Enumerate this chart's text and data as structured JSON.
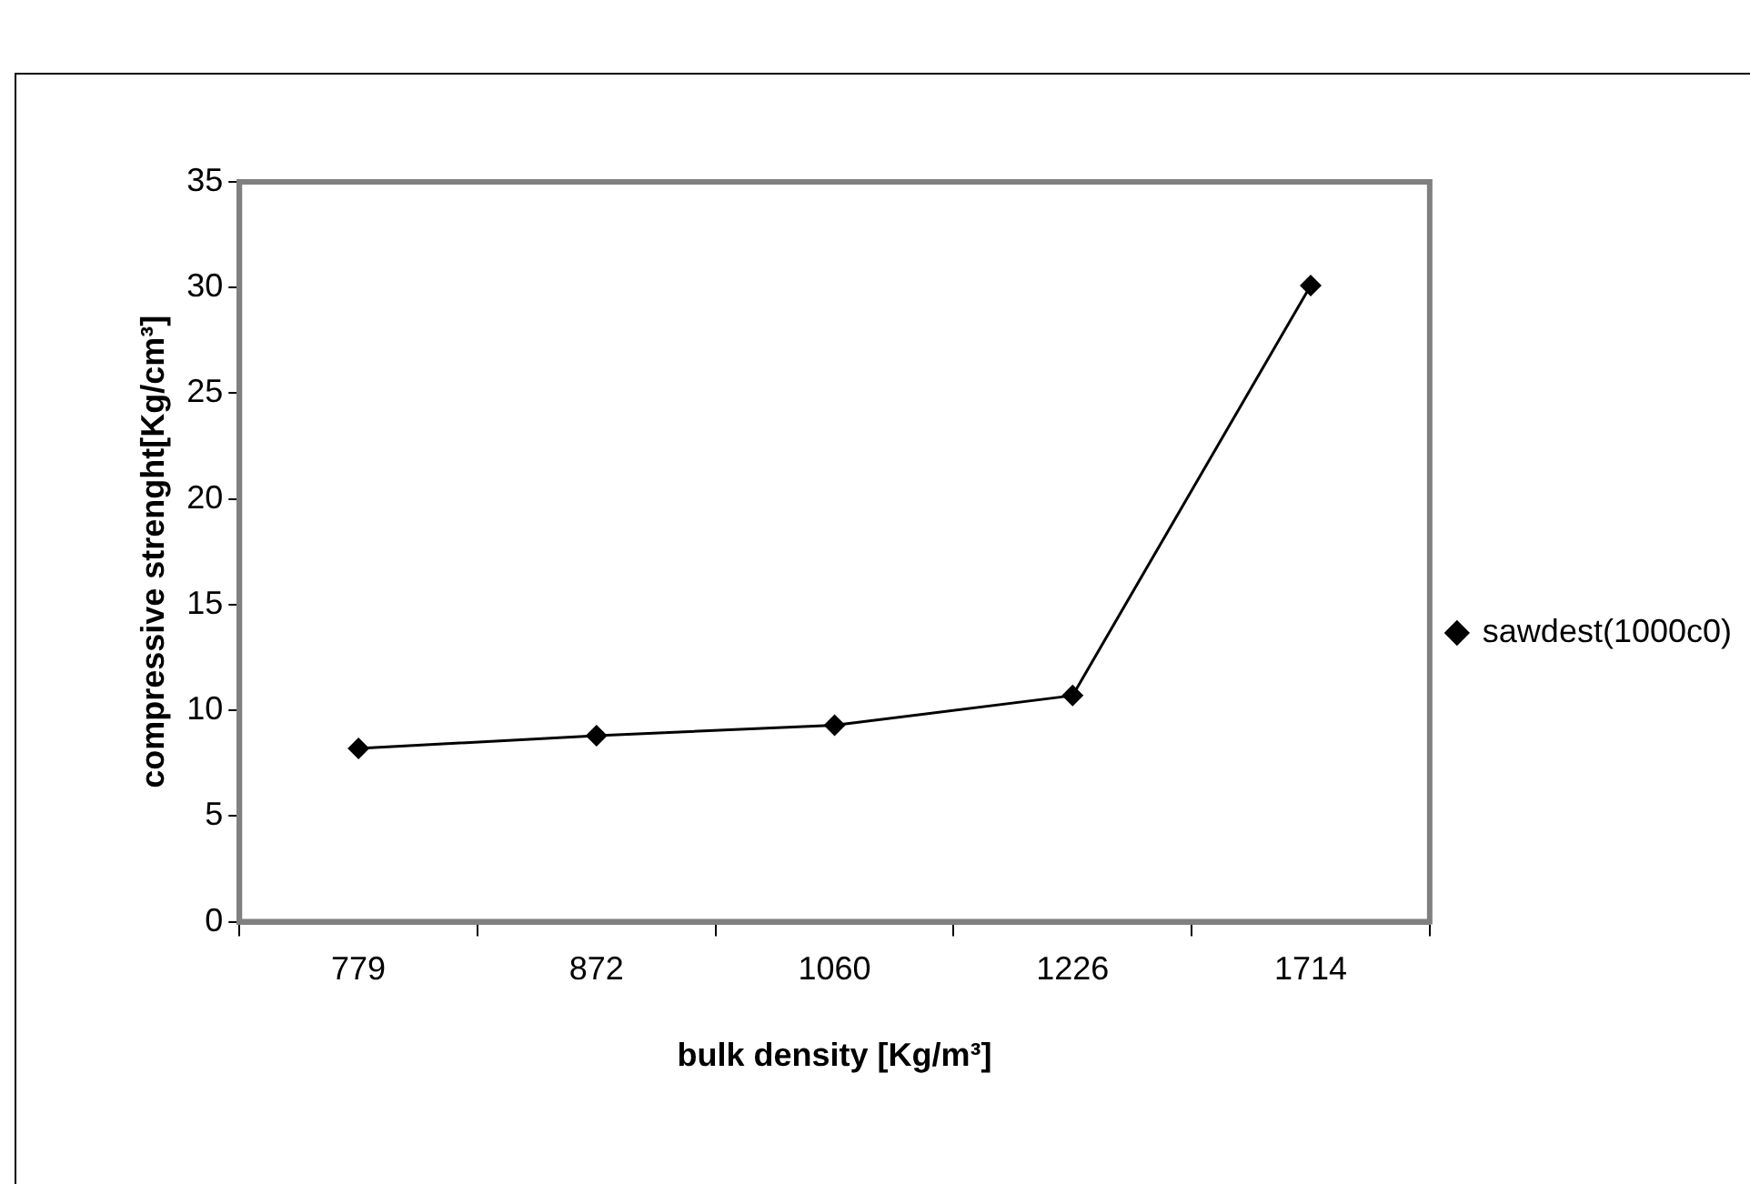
{
  "chart_data": {
    "type": "line",
    "xlabel": "bulk density [Kg/m³]",
    "ylabel": "compressive strenght[Kg/cm³]",
    "categories": [
      "779",
      "872",
      "1060",
      "1226",
      "1714"
    ],
    "series": [
      {
        "name": "sawdest(1000c0)",
        "color": "#000000",
        "values": [
          8.2,
          8.8,
          9.3,
          10.7,
          30.1
        ]
      }
    ],
    "ylim": [
      0,
      35
    ],
    "yticks": [
      0,
      5,
      10,
      15,
      20,
      25,
      30,
      35
    ],
    "grid": false,
    "legend": "right",
    "marker": "diamond",
    "line_style": "solid"
  }
}
